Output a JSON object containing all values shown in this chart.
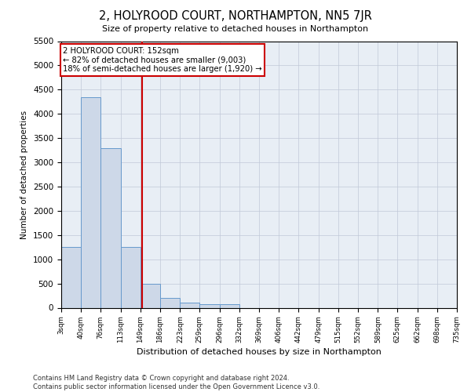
{
  "title": "2, HOLYROOD COURT, NORTHAMPTON, NN5 7JR",
  "subtitle": "Size of property relative to detached houses in Northampton",
  "xlabel": "Distribution of detached houses by size in Northampton",
  "ylabel": "Number of detached properties",
  "bin_edges": [
    3,
    40,
    76,
    113,
    149,
    186,
    223,
    259,
    296,
    332,
    369,
    406,
    442,
    479,
    515,
    552,
    589,
    625,
    662,
    698,
    735
  ],
  "bin_heights": [
    1250,
    4350,
    3300,
    1250,
    500,
    200,
    100,
    75,
    75,
    0,
    0,
    0,
    0,
    0,
    0,
    0,
    0,
    0,
    0,
    0
  ],
  "bar_color": "#cdd8e8",
  "bar_edge_color": "#6699cc",
  "vline_x": 152,
  "vline_color": "#cc0000",
  "annotation_text": "2 HOLYROOD COURT: 152sqm\n← 82% of detached houses are smaller (9,003)\n18% of semi-detached houses are larger (1,920) →",
  "annotation_box_color": "#ffffff",
  "annotation_box_edge": "#cc0000",
  "ylim": [
    0,
    5500
  ],
  "yticks": [
    0,
    500,
    1000,
    1500,
    2000,
    2500,
    3000,
    3500,
    4000,
    4500,
    5000,
    5500
  ],
  "footer": "Contains HM Land Registry data © Crown copyright and database right 2024.\nContains public sector information licensed under the Open Government Licence v3.0.",
  "bg_color": "#ffffff",
  "plot_bg_color": "#e8eef5",
  "grid_color": "#c0c8d8"
}
